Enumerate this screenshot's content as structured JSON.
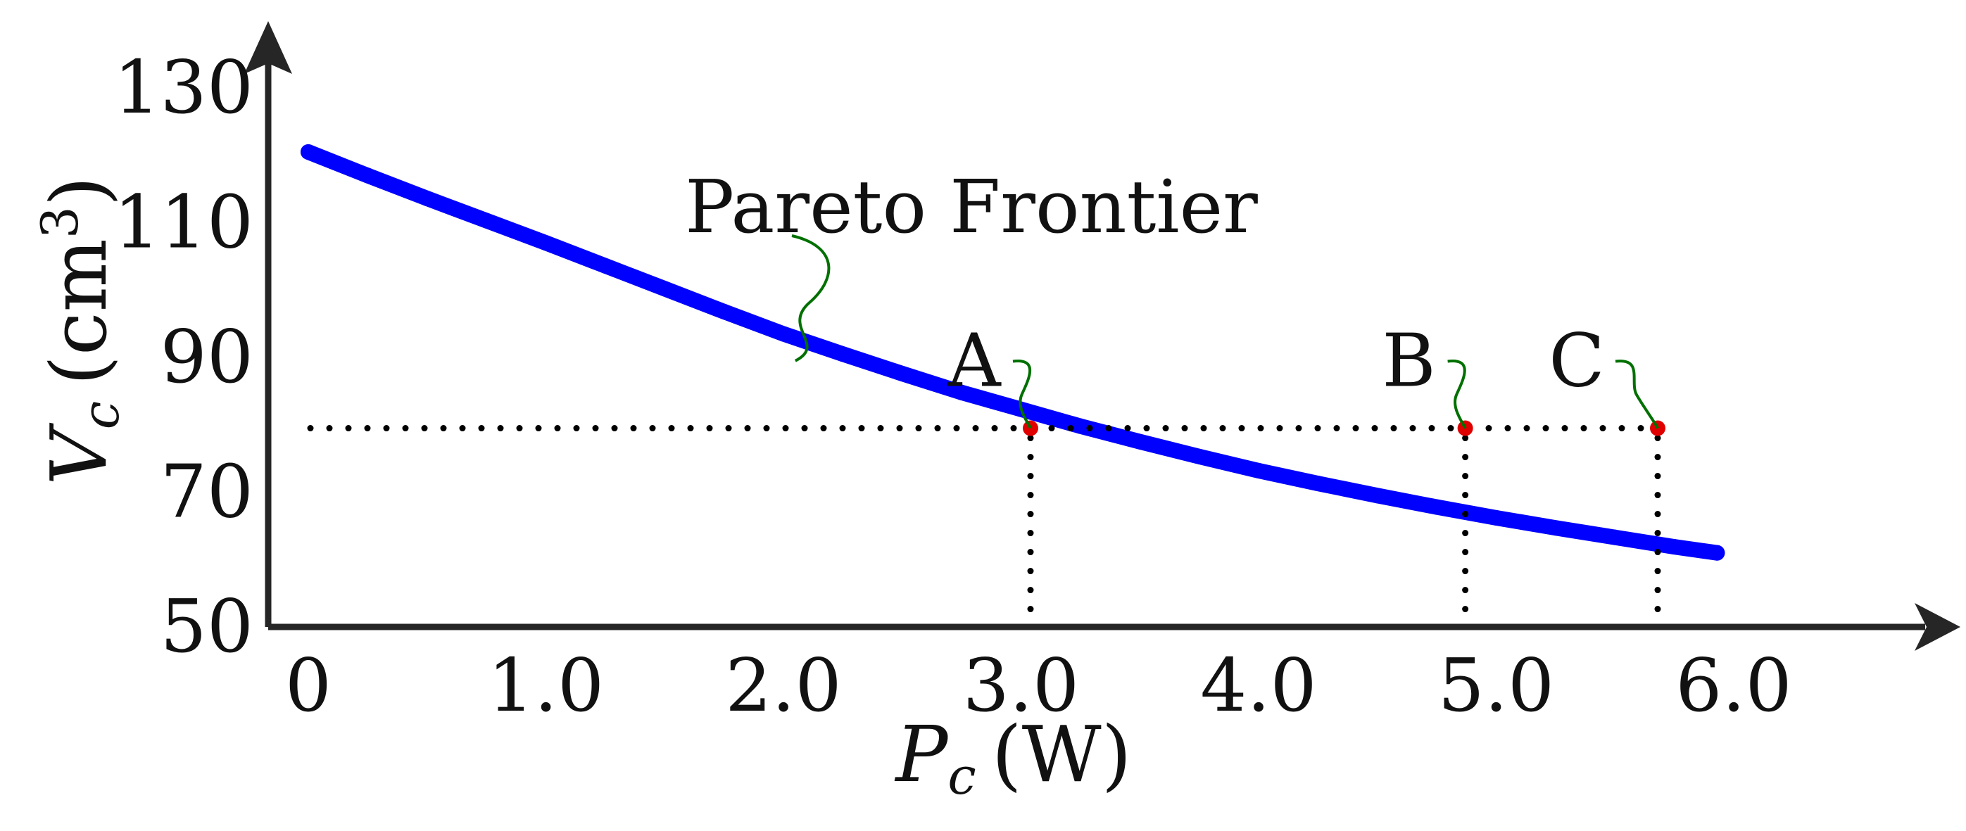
{
  "chart_data": {
    "type": "scatter",
    "title": "",
    "xlabel": {
      "main": "P",
      "sub": "c",
      "unit": "(W)"
    },
    "ylabel": {
      "main": "V",
      "sub": "c",
      "unit_open": "(cm",
      "unit_sup": "3",
      "unit_close": ")"
    },
    "xlim": [
      -0.15,
      6.4
    ],
    "ylim": [
      50,
      130
    ],
    "x_ticks": [
      0,
      1.0,
      2.0,
      3.0,
      4.0,
      5.0,
      6.0
    ],
    "x_tick_labels": [
      "0",
      "1.0",
      "2.0",
      "3.0",
      "4.0",
      "5.0",
      "6.0"
    ],
    "y_ticks": [
      50,
      70,
      90,
      110,
      130
    ],
    "y_tick_labels": [
      "50",
      "70",
      "90",
      "110",
      "130"
    ],
    "grid": false,
    "series": [
      {
        "color": "#0000ff",
        "x": [
          0.0,
          0.25,
          0.5,
          0.75,
          1.0,
          1.25,
          1.5,
          1.75,
          2.0,
          2.25,
          2.5,
          2.75,
          3.0,
          3.25,
          3.5,
          3.75,
          4.0,
          4.25,
          4.5,
          4.75,
          5.0,
          5.25,
          5.5,
          5.75,
          5.93
        ],
        "y": [
          120.5,
          117.0,
          113.6,
          110.3,
          107.0,
          103.6,
          100.2,
          96.8,
          93.5,
          90.5,
          87.6,
          84.8,
          82.3,
          79.8,
          77.5,
          75.3,
          73.2,
          71.3,
          69.5,
          67.8,
          66.2,
          64.7,
          63.3,
          61.9,
          61.0
        ]
      }
    ],
    "highlight_points": [
      {
        "label": "A",
        "x": 3.04,
        "y": 79.5,
        "color": "#e00000"
      },
      {
        "label": "B",
        "x": 4.87,
        "y": 79.5,
        "color": "#e00000"
      },
      {
        "label": "C",
        "x": 5.68,
        "y": 79.5,
        "color": "#e00000"
      }
    ],
    "reference_line_y": 79.5,
    "annotations": [
      {
        "text": "Pareto Frontier",
        "x": 2.05,
        "y": 89.5
      }
    ]
  }
}
